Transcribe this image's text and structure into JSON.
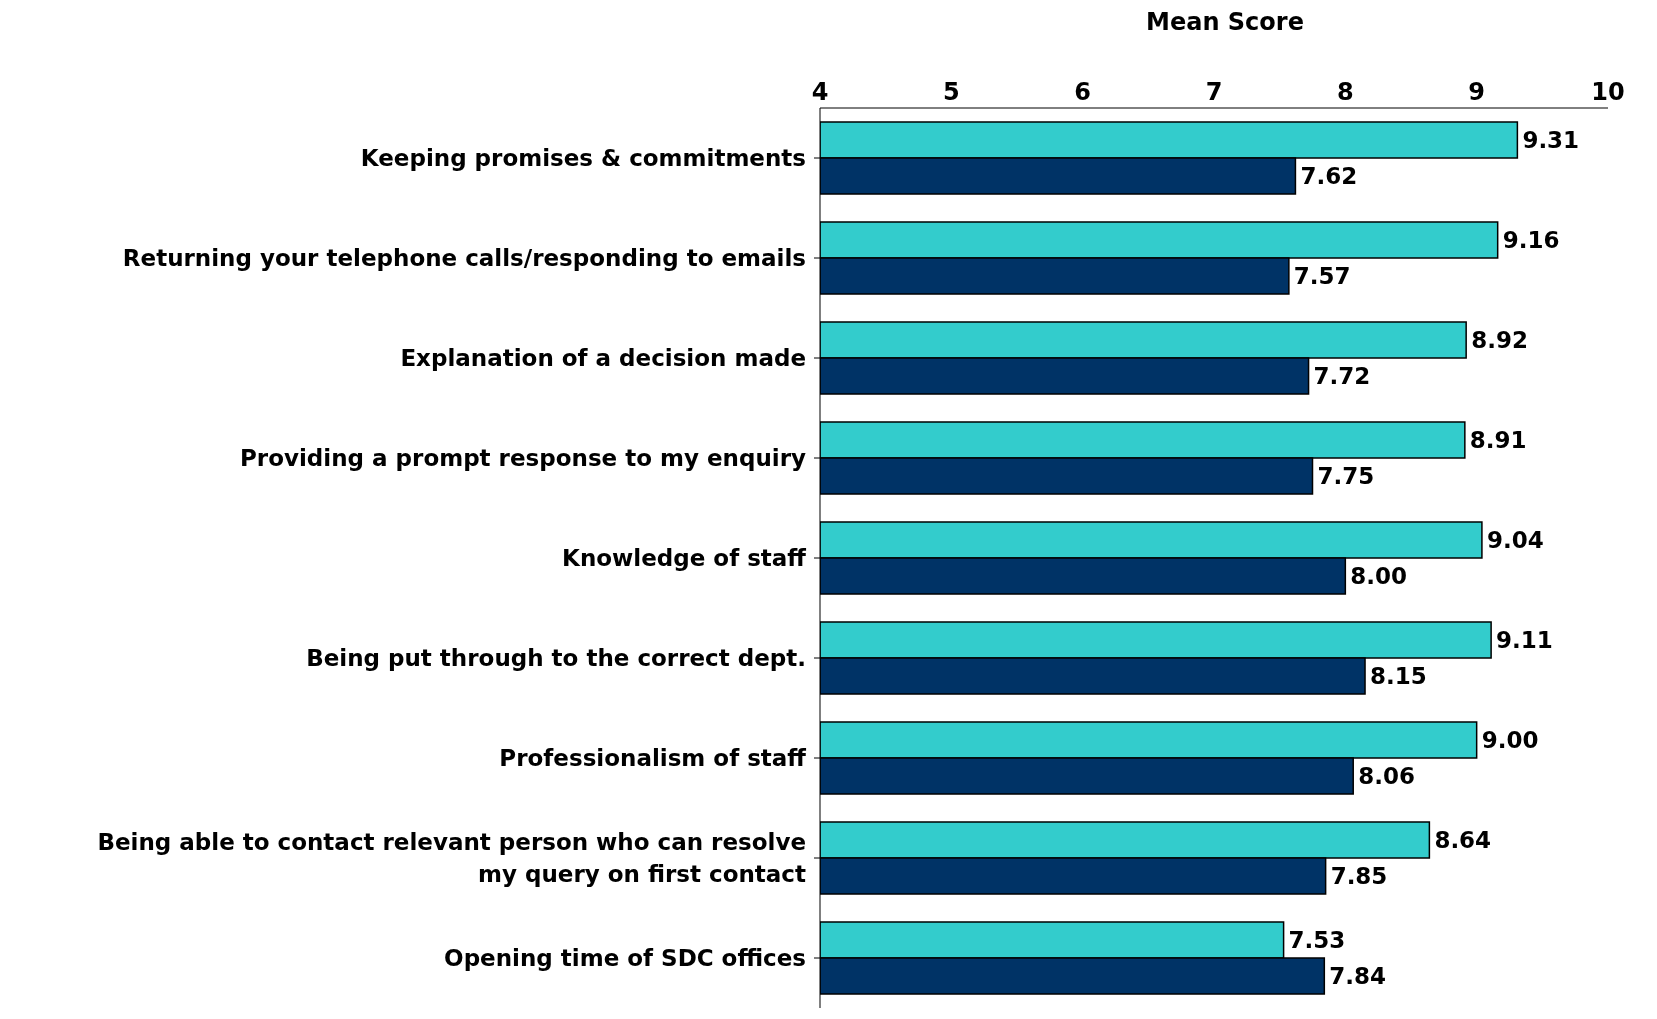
{
  "chart_data": {
    "type": "bar",
    "orientation": "horizontal",
    "xlabel": "Mean Score",
    "categories": [
      "Keeping promises & commitments",
      "Returning your telephone calls/responding to emails",
      "Explanation of a decision made",
      "Providing a prompt response to my enquiry",
      "Knowledge of staff ",
      "Being put through to the correct dept.",
      "Professionalism of staff",
      "Being able to contact relevant person who can resolve my query on first contact",
      "Opening time of SDC offices"
    ],
    "series": [
      {
        "color": "#33cccc",
        "values": [
          9.31,
          9.16,
          8.92,
          8.91,
          9.04,
          9.11,
          9.0,
          8.64,
          7.53
        ],
        "value_labels": [
          "9.31",
          "9.16",
          "8.92",
          "8.91",
          "9.04",
          "9.11",
          "9.00",
          "8.64",
          "7.53"
        ]
      },
      {
        "color": "#003366",
        "values": [
          7.62,
          7.57,
          7.72,
          7.75,
          8.0,
          8.15,
          8.06,
          7.85,
          7.84
        ],
        "value_labels": [
          "7.62",
          "7.57",
          "7.72",
          "7.75",
          "8.00",
          "8.15",
          "8.06",
          "7.85",
          "7.84"
        ]
      }
    ],
    "xlim": [
      4,
      10
    ],
    "xticks": [
      4,
      5,
      6,
      7,
      8,
      9,
      10
    ],
    "grid": false,
    "legend": false
  }
}
